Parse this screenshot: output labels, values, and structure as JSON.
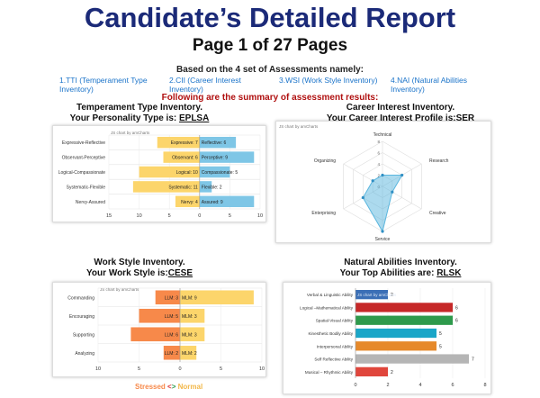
{
  "header": {
    "title": "Candidate’s Detailed Report",
    "page": "Page 1 of 27 Pages",
    "based_on": "Based on the 4 set of Assessments namely:",
    "assessments": [
      "1.TTI (Temperament Type Inventory)",
      "2.CII (Career Interest Inventory)",
      "3.WSI (Work Style Inventory)",
      "4.NAI (Natural Abilities Inventory)"
    ],
    "summary_line": "Following are the summary of assessment results:"
  },
  "panels": {
    "temperament": {
      "title": "Temperament Type Inventory.",
      "subtitle_prefix": "Your Personality Type is: ",
      "code": "EPLSA"
    },
    "career": {
      "title": "Career Interest Inventory.",
      "subtitle_prefix": "Your Career Interest Profile is:",
      "code": "SER"
    },
    "workstyle": {
      "title": "Work Style Inventory.",
      "subtitle_prefix": "Your Work Style is:",
      "code": "CESE"
    },
    "abilities": {
      "title": "Natural Abilities Inventory.",
      "subtitle_prefix": "Your Top Abilities are: ",
      "code": "RLSK"
    }
  },
  "credit": "JS chart by amCharts",
  "colors": {
    "title_blue": "#1b2a78",
    "red": "#b01010",
    "link_blue": "#1a73c9",
    "yellow": "#fcd56b",
    "sky": "#7ec6e6",
    "orange": "#f7894a",
    "radar": "#5ab6de"
  },
  "chart_data": [
    {
      "type": "bar",
      "orientation": "horizontal-diverging",
      "categories": [
        "Expressive-Reflective",
        "Observant-Perceptive",
        "Logical-Compassionate",
        "Systematic-Flexible",
        "Nervy-Assured"
      ],
      "series": [
        {
          "labels": [
            "Expressive: 7",
            "Observant: 6",
            "Logical: 10",
            "Systematic: 11",
            "Nervy: 4"
          ],
          "values": [
            -7,
            -6,
            -10,
            -11,
            -4
          ]
        },
        {
          "labels": [
            "Reflective: 6",
            "Perceptive: 9",
            "Compassionate: 5",
            "Flexible: 2",
            "Assured: 9"
          ],
          "values": [
            6,
            9,
            5,
            2,
            9
          ]
        }
      ],
      "xticks": [
        "15",
        "10",
        "5",
        "0",
        "5",
        "10"
      ],
      "xlim": [
        -15,
        10
      ]
    },
    {
      "type": "radar",
      "axes": [
        "Technical",
        "Research",
        "Creative",
        "Service",
        "Enterprising",
        "Organizing"
      ],
      "values": [
        2,
        4,
        2,
        8,
        4,
        2
      ],
      "rticks": [
        "0",
        "2",
        "4",
        "6",
        "8"
      ],
      "rmax": 8
    },
    {
      "type": "bar",
      "orientation": "horizontal-diverging",
      "categories": [
        "Commanding",
        "Encouraging",
        "Supporting",
        "Analyzing"
      ],
      "series": [
        {
          "name": "Stressed",
          "labels": [
            "LLM: 3",
            "LLM: 5",
            "LLM: 6",
            "LLM: 2"
          ],
          "values": [
            -3,
            -5,
            -6,
            -2
          ]
        },
        {
          "name": "Normal",
          "labels": [
            "MLM: 9",
            "MLM: 3",
            "MLM: 3",
            "MLM: 2"
          ],
          "values": [
            9,
            3,
            3,
            2
          ]
        }
      ],
      "xticks": [
        "10",
        "5",
        "0",
        "5",
        "10"
      ],
      "xlim": [
        -10,
        10
      ],
      "legend": {
        "left": "Stressed",
        "arrows": "<>",
        "right": "Normal"
      }
    },
    {
      "type": "bar",
      "orientation": "horizontal",
      "categories": [
        "Verbal & Linguistic Ability",
        "Logical –Mathematical Ability",
        "Spatial-Visual Ability",
        "Kinesthetic Bodily Ability",
        "Interpersonal Ability",
        "Self Reflective Ability",
        "Musical – Rhythmic Ability"
      ],
      "values": [
        2,
        6,
        6,
        5,
        5,
        7,
        2
      ],
      "value_labels": [
        "2",
        "6",
        "6",
        "5",
        "5",
        "7",
        "2"
      ],
      "colors": [
        "#3b6fb6",
        "#c62828",
        "#2e9a4c",
        "#1aa6c8",
        "#e6892a",
        "#b5b5b5",
        "#e0463c"
      ],
      "xticks": [
        "0",
        "2",
        "4",
        "6",
        "8"
      ],
      "xlim": [
        0,
        8
      ]
    }
  ]
}
